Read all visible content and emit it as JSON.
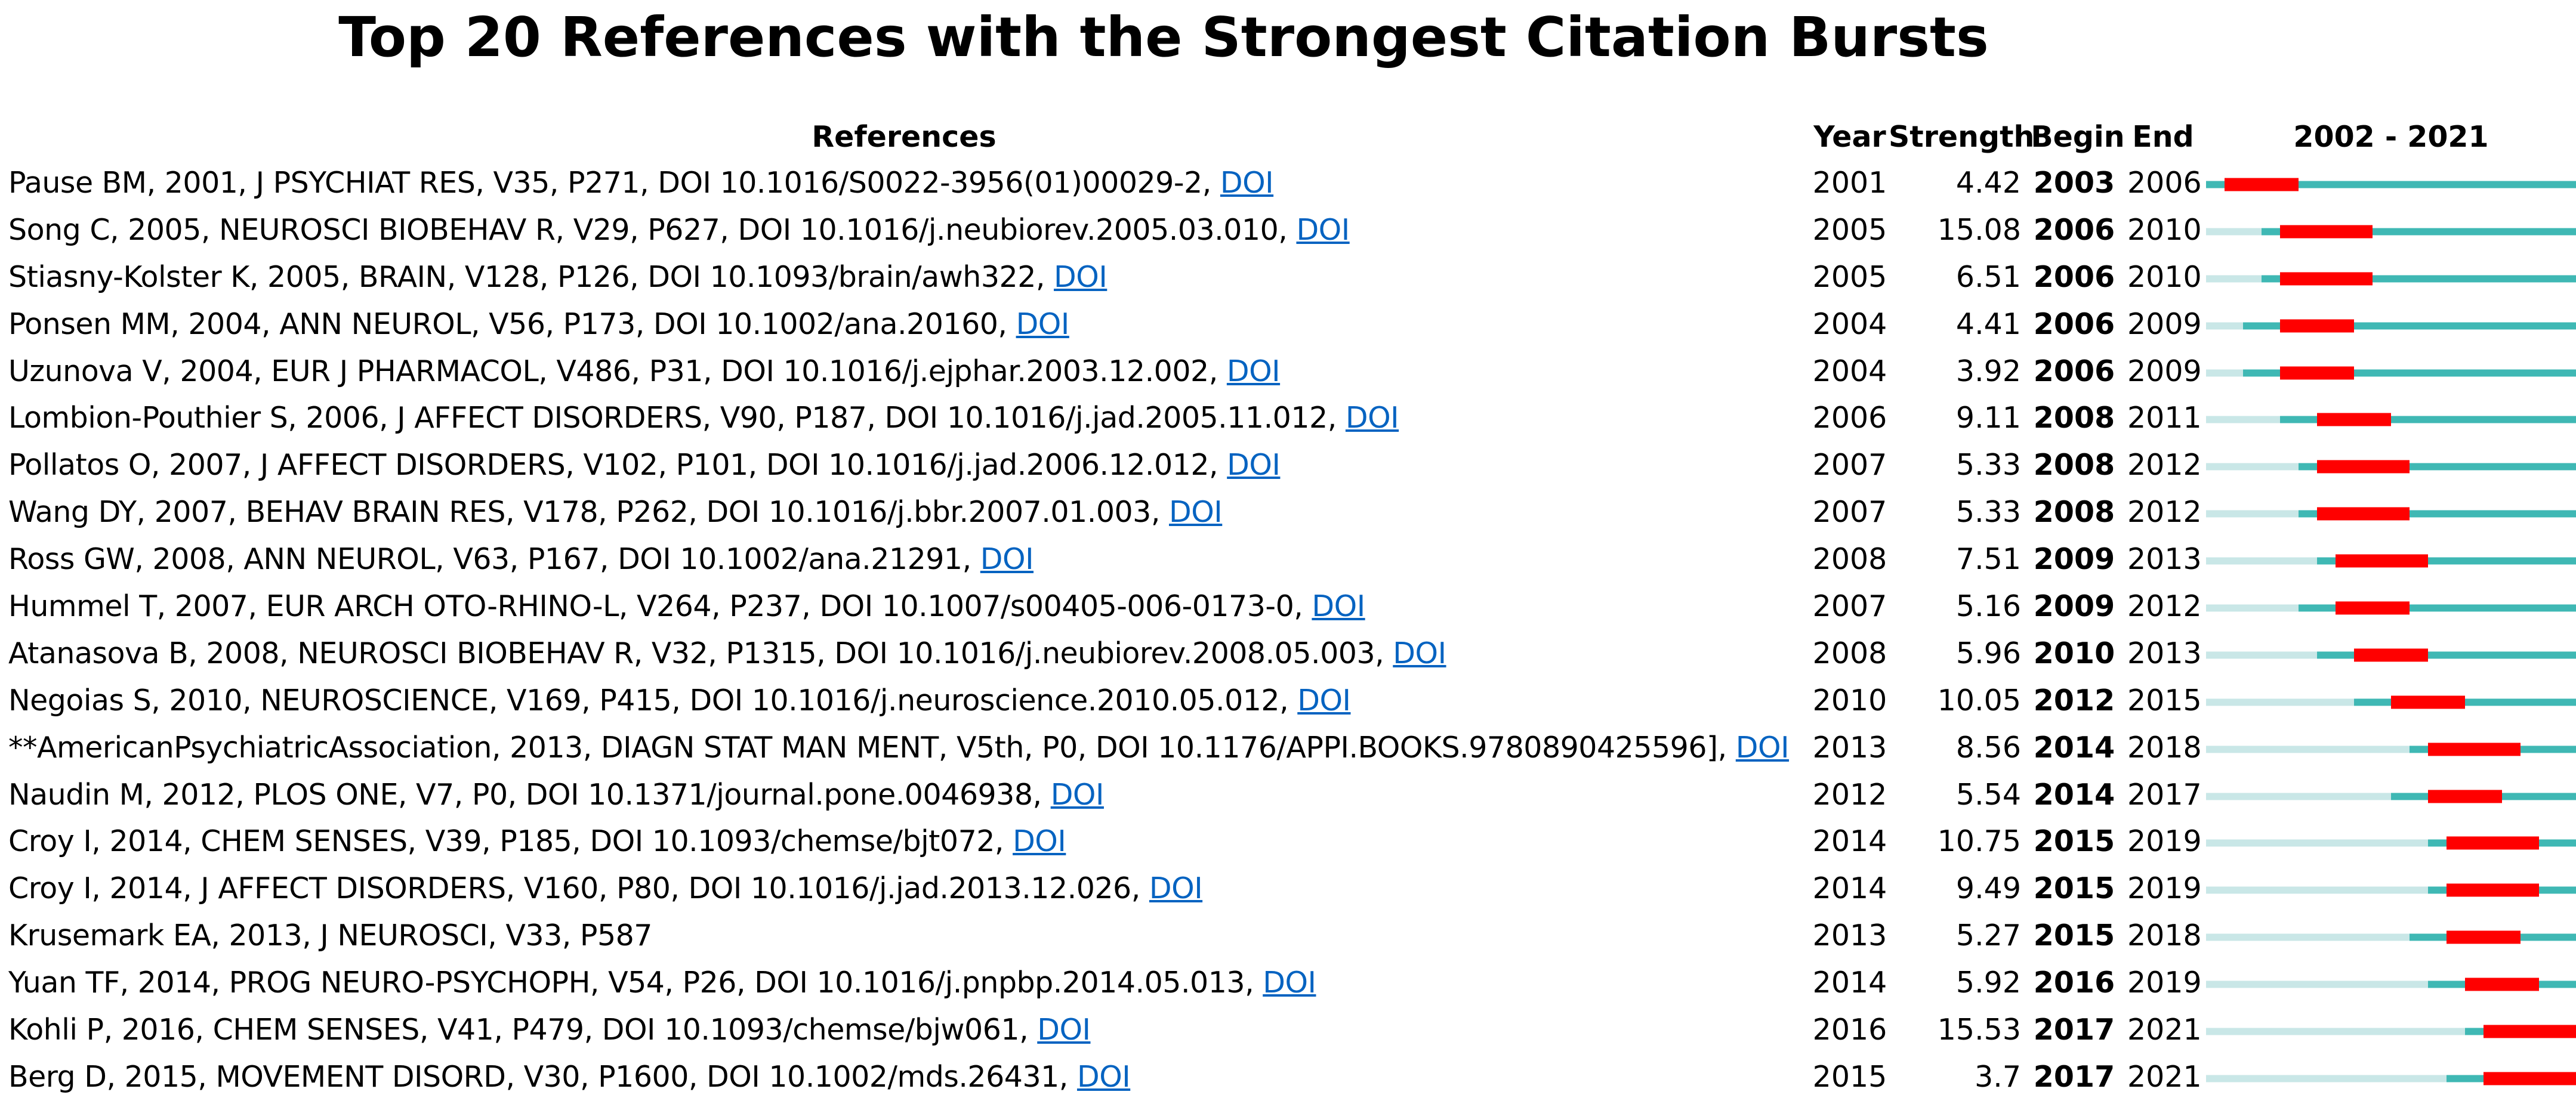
{
  "title": "Top 20 References with the Strongest Citation Bursts",
  "headers": {
    "references": "References",
    "year": "Year",
    "strength": "Strength",
    "begin": "Begin",
    "end": "End",
    "range": "2002 - 2021"
  },
  "colors": {
    "burst": "#ff0000",
    "active": "#3fb8b4",
    "inactive": "#c9e7e7",
    "link": "#0563c1"
  },
  "chart_data": {
    "type": "table",
    "title": "Top 20 References with the Strongest Citation Bursts",
    "range_start": 2002,
    "range_end": 2021,
    "rows": [
      {
        "ref": "Pause BM, 2001, J PSYCHIAT RES, V35, P271, DOI 10.1016/S0022-3956(01)00029-2, ",
        "doi": "DOI",
        "year": 2001,
        "strength": "4.42",
        "begin": 2003,
        "end": 2006
      },
      {
        "ref": "Song C, 2005, NEUROSCI BIOBEHAV R, V29, P627, DOI 10.1016/j.neubiorev.2005.03.010, ",
        "doi": "DOI",
        "year": 2005,
        "strength": "15.08",
        "begin": 2006,
        "end": 2010
      },
      {
        "ref": "Stiasny-Kolster K, 2005, BRAIN, V128, P126, DOI 10.1093/brain/awh322, ",
        "doi": "DOI",
        "year": 2005,
        "strength": "6.51",
        "begin": 2006,
        "end": 2010
      },
      {
        "ref": "Ponsen MM, 2004, ANN NEUROL, V56, P173, DOI 10.1002/ana.20160, ",
        "doi": "DOI",
        "year": 2004,
        "strength": "4.41",
        "begin": 2006,
        "end": 2009
      },
      {
        "ref": "Uzunova V, 2004, EUR J PHARMACOL, V486, P31, DOI 10.1016/j.ejphar.2003.12.002, ",
        "doi": "DOI",
        "year": 2004,
        "strength": "3.92",
        "begin": 2006,
        "end": 2009
      },
      {
        "ref": "Lombion-Pouthier S, 2006, J AFFECT DISORDERS, V90, P187, DOI 10.1016/j.jad.2005.11.012, ",
        "doi": "DOI",
        "year": 2006,
        "strength": "9.11",
        "begin": 2008,
        "end": 2011
      },
      {
        "ref": "Pollatos O, 2007, J AFFECT DISORDERS, V102, P101, DOI 10.1016/j.jad.2006.12.012, ",
        "doi": "DOI",
        "year": 2007,
        "strength": "5.33",
        "begin": 2008,
        "end": 2012
      },
      {
        "ref": "Wang DY, 2007, BEHAV BRAIN RES, V178, P262, DOI 10.1016/j.bbr.2007.01.003, ",
        "doi": "DOI",
        "year": 2007,
        "strength": "5.33",
        "begin": 2008,
        "end": 2012
      },
      {
        "ref": "Ross GW, 2008, ANN NEUROL, V63, P167, DOI 10.1002/ana.21291, ",
        "doi": "DOI",
        "year": 2008,
        "strength": "7.51",
        "begin": 2009,
        "end": 2013
      },
      {
        "ref": "Hummel T, 2007, EUR ARCH OTO-RHINO-L, V264, P237, DOI 10.1007/s00405-006-0173-0, ",
        "doi": "DOI",
        "year": 2007,
        "strength": "5.16",
        "begin": 2009,
        "end": 2012
      },
      {
        "ref": "Atanasova B, 2008, NEUROSCI BIOBEHAV R, V32, P1315, DOI 10.1016/j.neubiorev.2008.05.003, ",
        "doi": "DOI",
        "year": 2008,
        "strength": "5.96",
        "begin": 2010,
        "end": 2013
      },
      {
        "ref": "Negoias S, 2010, NEUROSCIENCE, V169, P415, DOI 10.1016/j.neuroscience.2010.05.012, ",
        "doi": "DOI",
        "year": 2010,
        "strength": "10.05",
        "begin": 2012,
        "end": 2015
      },
      {
        "ref": "**AmericanPsychiatricAssociation, 2013, DIAGN STAT MAN MENT, V5th, P0, DOI 10.1176/APPI.BOOKS.9780890425596], ",
        "doi": "DOI",
        "year": 2013,
        "strength": "8.56",
        "begin": 2014,
        "end": 2018
      },
      {
        "ref": "Naudin M, 2012, PLOS ONE, V7, P0, DOI 10.1371/journal.pone.0046938, ",
        "doi": "DOI",
        "year": 2012,
        "strength": "5.54",
        "begin": 2014,
        "end": 2017
      },
      {
        "ref": "Croy I, 2014, CHEM SENSES, V39, P185, DOI 10.1093/chemse/bjt072, ",
        "doi": "DOI",
        "year": 2014,
        "strength": "10.75",
        "begin": 2015,
        "end": 2019
      },
      {
        "ref": "Croy I, 2014, J AFFECT DISORDERS, V160, P80, DOI 10.1016/j.jad.2013.12.026, ",
        "doi": "DOI",
        "year": 2014,
        "strength": "9.49",
        "begin": 2015,
        "end": 2019
      },
      {
        "ref": "Krusemark EA, 2013, J NEUROSCI, V33, P587",
        "doi": "",
        "year": 2013,
        "strength": "5.27",
        "begin": 2015,
        "end": 2018
      },
      {
        "ref": "Yuan TF, 2014, PROG NEURO-PSYCHOPH, V54, P26, DOI 10.1016/j.pnpbp.2014.05.013, ",
        "doi": "DOI",
        "year": 2014,
        "strength": "5.92",
        "begin": 2016,
        "end": 2019
      },
      {
        "ref": "Kohli P, 2016, CHEM SENSES, V41, P479, DOI 10.1093/chemse/bjw061, ",
        "doi": "DOI",
        "year": 2016,
        "strength": "15.53",
        "begin": 2017,
        "end": 2021
      },
      {
        "ref": "Berg D, 2015, MOVEMENT DISORD, V30, P1600, DOI 10.1002/mds.26431, ",
        "doi": "DOI",
        "year": 2015,
        "strength": "3.7",
        "begin": 2017,
        "end": 2021
      }
    ]
  }
}
